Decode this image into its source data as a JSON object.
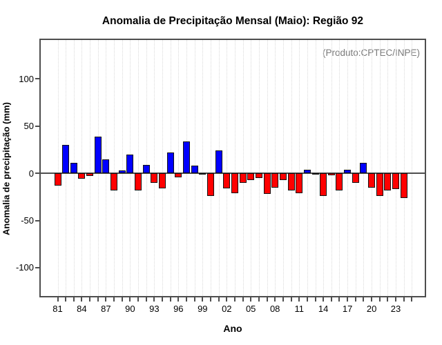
{
  "title": "Anomalia de Precipitação Mensal (Maio): Região 92",
  "annotation": "(Produto:CPTEC/INPE)",
  "chart_data": {
    "type": "bar",
    "title": "Anomalia de Precipitação Mensal (Maio): Região 92",
    "xlabel": "Ano",
    "ylabel": "Anomalia de precipitação (mm)",
    "annotation": "(Produto:CPTEC/INPE)",
    "x": [
      1981,
      1982,
      1983,
      1984,
      1985,
      1986,
      1987,
      1988,
      1989,
      1990,
      1991,
      1992,
      1993,
      1994,
      1995,
      1996,
      1997,
      1998,
      1999,
      2000,
      2001,
      2002,
      2003,
      2004,
      2005,
      2006,
      2007,
      2008,
      2009,
      2010,
      2011,
      2012,
      2013,
      2014,
      2015,
      2016,
      2017,
      2018,
      2019,
      2020,
      2021,
      2022,
      2023,
      2024
    ],
    "values": [
      -13,
      30,
      11,
      -6,
      -3,
      39,
      15,
      -18,
      3,
      20,
      -18,
      9,
      -10,
      -16,
      22,
      -4,
      34,
      8,
      -1,
      -24,
      24,
      -16,
      -21,
      -10,
      -7,
      -5,
      -22,
      -15,
      -7,
      -18,
      -21,
      4,
      -1,
      -24,
      -2,
      -18,
      4,
      -10,
      11,
      -15,
      -24,
      -18,
      -17,
      -26
    ],
    "positive_color": "#0000ff",
    "negative_color": "#ff0000",
    "bar_border_color": "#111111",
    "yticks": [
      -100,
      -50,
      0,
      50,
      100
    ],
    "ytick_labels": [
      "-100",
      "-50",
      "0",
      "50",
      "100"
    ],
    "xtick_labeled_years": [
      1981,
      1984,
      1987,
      1990,
      1993,
      1996,
      1999,
      2002,
      2005,
      2008,
      2011,
      2014,
      2017,
      2020,
      2023
    ],
    "xtick_labels": [
      "81",
      "84",
      "87",
      "90",
      "93",
      "96",
      "99",
      "02",
      "05",
      "08",
      "11",
      "14",
      "17",
      "20",
      "23"
    ],
    "xtick_minor_range": [
      1981,
      2025
    ],
    "ylim": [
      -130,
      141
    ],
    "xlim_years": [
      1978.9,
      2026.6
    ],
    "grid": "vertical-dotted",
    "grid_color": "#d9d9d9",
    "legend": "none"
  }
}
